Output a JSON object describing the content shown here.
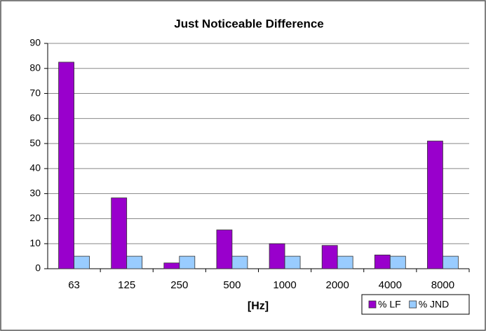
{
  "chart_data": {
    "type": "bar",
    "title": "Just Noticeable Difference",
    "x_label": "[Hz]",
    "categories": [
      "63",
      "125",
      "250",
      "500",
      "1000",
      "2000",
      "4000",
      "8000"
    ],
    "series": [
      {
        "name": "% LF",
        "color": "#9900cc",
        "values": [
          82.5,
          28.3,
          2.3,
          15.5,
          10,
          9.3,
          5.5,
          51
        ]
      },
      {
        "name": "% JND",
        "color": "#99ccff",
        "values": [
          5,
          5,
          5,
          5,
          5,
          5,
          5,
          5
        ]
      }
    ],
    "ylim": [
      0,
      90
    ],
    "yticks": [
      0,
      10,
      20,
      30,
      40,
      50,
      60,
      70,
      80,
      90
    ],
    "grid": true,
    "legend": "lower right"
  }
}
